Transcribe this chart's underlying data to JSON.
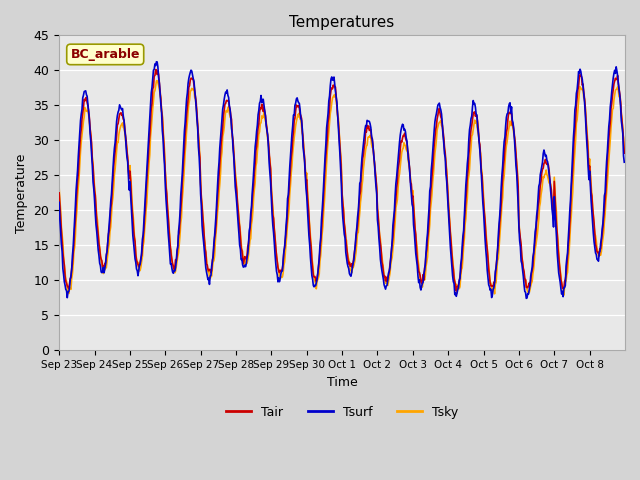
{
  "title": "Temperatures",
  "xlabel": "Time",
  "ylabel": "Temperature",
  "ylim": [
    0,
    45
  ],
  "yticks": [
    0,
    5,
    10,
    15,
    20,
    25,
    30,
    35,
    40,
    45
  ],
  "fig_bg_color": "#d4d4d4",
  "plot_bg_color": "#e8e8e8",
  "site_label": "BC_arable",
  "site_label_color": "#8B0000",
  "site_label_bg": "#FFFFCC",
  "site_label_edge": "#999900",
  "line_Tair_color": "#CC0000",
  "line_Tsurf_color": "#0000CC",
  "line_Tsky_color": "#FFA500",
  "line_width": 1.2,
  "legend_labels": [
    "Tair",
    "Tsurf",
    "Tsky"
  ],
  "x_tick_labels": [
    "Sep 23",
    "Sep 24",
    "Sep 25",
    "Sep 26",
    "Sep 27",
    "Sep 28",
    "Sep 29",
    "Sep 30",
    "Oct 1",
    "Oct 2",
    "Oct 3",
    "Oct 4",
    "Oct 5",
    "Oct 6",
    "Oct 7",
    "Oct 8"
  ],
  "num_days": 16,
  "points_per_day": 48,
  "base_temps": [
    9,
    12,
    12,
    12,
    11,
    13,
    11,
    10,
    12,
    10,
    10,
    9,
    9,
    9,
    9,
    14
  ],
  "peak_temps": [
    36,
    34,
    40,
    39,
    36,
    35,
    35,
    38,
    32,
    31,
    34,
    34,
    34,
    27,
    39,
    39
  ]
}
